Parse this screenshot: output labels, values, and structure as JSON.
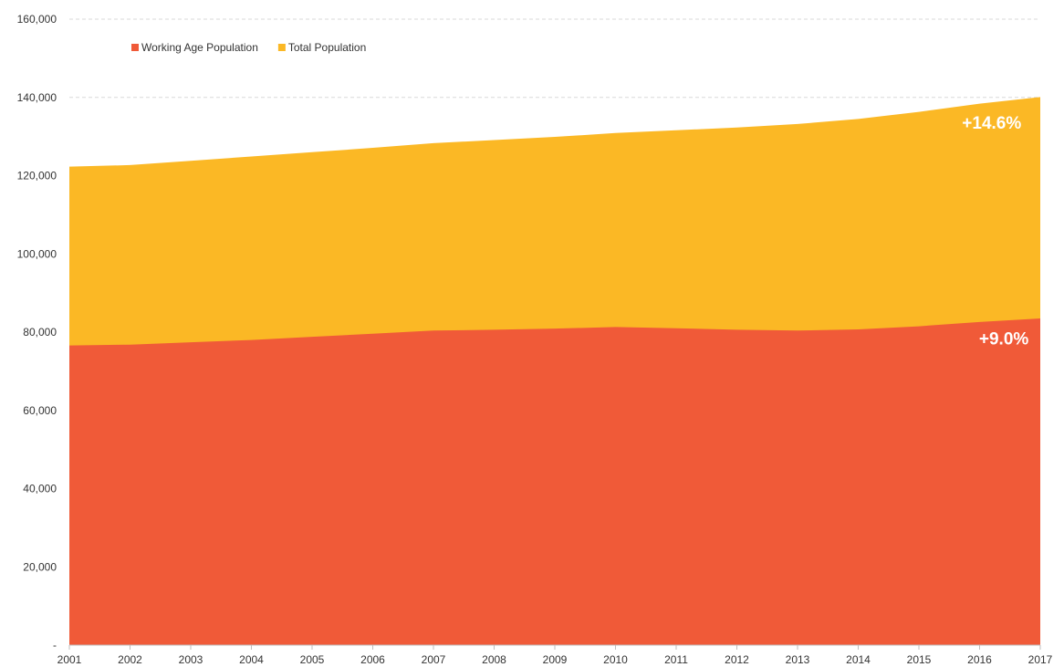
{
  "chart_data": {
    "type": "area",
    "stacked": false,
    "x": [
      2001,
      2002,
      2003,
      2004,
      2005,
      2006,
      2007,
      2008,
      2009,
      2010,
      2011,
      2012,
      2013,
      2014,
      2015,
      2016,
      2017
    ],
    "series": [
      {
        "name": "Working Age Population",
        "color": "#f05a38",
        "values": [
          76600,
          76800,
          77400,
          78000,
          78800,
          79600,
          80400,
          80600,
          80900,
          81300,
          81000,
          80600,
          80400,
          80700,
          81500,
          82600,
          83500
        ]
      },
      {
        "name": "Total Population",
        "color": "#fbb825",
        "values": [
          122300,
          122700,
          123800,
          124900,
          126000,
          127100,
          128300,
          129100,
          129900,
          130900,
          131600,
          132300,
          133200,
          134500,
          136300,
          138400,
          140100
        ]
      }
    ],
    "ylim": [
      0,
      160000
    ],
    "yticks": [
      0,
      20000,
      40000,
      60000,
      80000,
      100000,
      120000,
      140000,
      160000
    ],
    "ytick_labels": [
      "-",
      "20,000",
      "40,000",
      "60,000",
      "80,000",
      "100,000",
      "120,000",
      "140,000",
      "160,000"
    ],
    "xtick_labels": [
      "2001",
      "2002",
      "2003",
      "2004",
      "2005",
      "2006",
      "2007",
      "2008",
      "2009",
      "2010",
      "2011",
      "2012",
      "2013",
      "2014",
      "2015",
      "2016",
      "2017"
    ],
    "grid": true,
    "legend_position": "top-left",
    "annotations": [
      {
        "text": "+14.6%",
        "series": "Total Population",
        "x": 2016.2,
        "y": 130600
      },
      {
        "text": "+9.0%",
        "series": "Working Age Population",
        "x": 2016.4,
        "y": 75400
      }
    ]
  }
}
